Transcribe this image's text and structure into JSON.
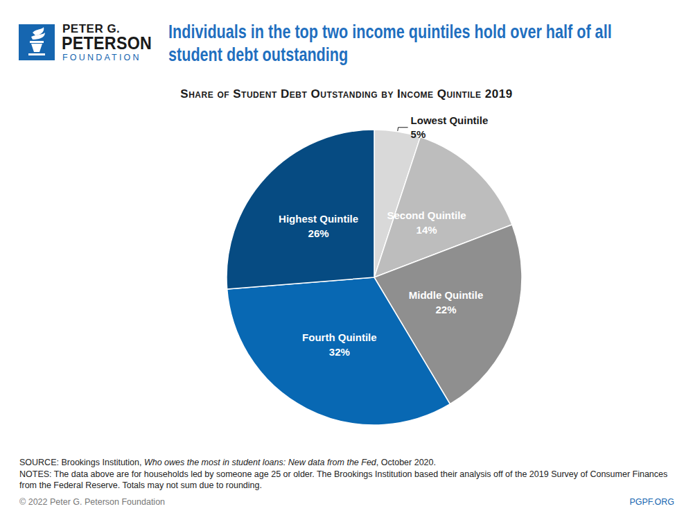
{
  "logo": {
    "lines": [
      "PETER G.",
      "PETERSON",
      "FOUNDATION"
    ]
  },
  "headline": "Individuals in the top two income quintiles hold over half of all student debt outstanding",
  "chart_data": {
    "type": "pie",
    "title": "Share of Student Debt Outstanding by Income Quintile 2019",
    "categories": [
      "Lowest Quintile",
      "Second Quintile",
      "Middle Quintile",
      "Fourth Quintile",
      "Highest Quintile"
    ],
    "values": [
      5,
      14,
      22,
      32,
      26
    ],
    "value_labels": [
      "5%",
      "14%",
      "22%",
      "32%",
      "26%"
    ],
    "colors": [
      "#d9d9d9",
      "#bdbdbd",
      "#8f8f8f",
      "#0868b3",
      "#064b82"
    ],
    "data_labels": true
  },
  "source": {
    "lead": "SOURCE: Brookings Institution, ",
    "work": "Who owes the most in student loans: New data from the Fed",
    "tail": ", October 2020."
  },
  "notes": "NOTES: The data above are for households led by someone age 25 or older. The Brookings Institution based their analysis off of the 2019 Survey of Consumer Finances from the Federal Reserve. Totals may not sum due to rounding.",
  "copyright": "© 2022 Peter G. Peterson Foundation",
  "site": "PGPF.ORG"
}
